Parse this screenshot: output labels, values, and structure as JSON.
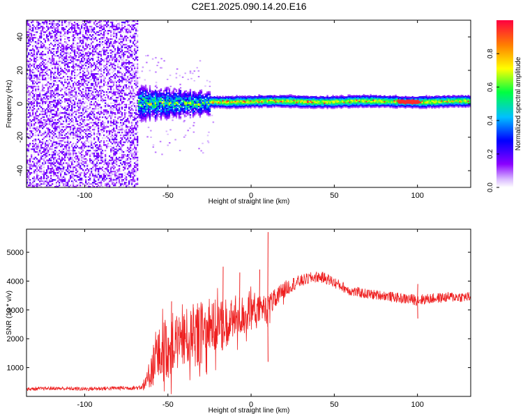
{
  "title": "C2E1.2025.090.14.20.E16",
  "chart_data": [
    {
      "type": "heatmap",
      "xlabel": "Height of straight line (km)",
      "ylabel": "Frequency (Hz)",
      "xlim": [
        -135,
        132
      ],
      "ylim": [
        -50,
        50
      ],
      "xticks": [
        -100,
        -50,
        0,
        50,
        100
      ],
      "yticks": [
        -40,
        -20,
        0,
        20,
        40
      ],
      "xtick_labels": [
        "-100",
        "-50",
        "0",
        "50",
        "100"
      ],
      "ytick_labels": [
        "-40",
        "-20",
        "0",
        "20",
        "40"
      ],
      "colorbar": {
        "label": "Normalized spectral amplitude",
        "range": [
          0,
          1
        ],
        "ticks": [
          0.0,
          0.2,
          0.4,
          0.6,
          0.8
        ],
        "tick_labels": [
          "0.0",
          "0.2",
          "0.4",
          "0.6",
          "0.8"
        ],
        "colormap": [
          "#ffffff",
          "#8a00ff",
          "#0000ff",
          "#00c0ff",
          "#00ff40",
          "#ffff00",
          "#ff8000",
          "#ff0040"
        ]
      },
      "regions": [
        {
          "x_range": [
            -135,
            -68
          ],
          "freq_range": [
            -50,
            50
          ],
          "amplitude": [
            0.0,
            0.2
          ],
          "pattern": "broadband noise"
        },
        {
          "x_range": [
            -68,
            -25
          ],
          "freq_center": 0,
          "freq_halfwidth": 6,
          "amplitude": [
            0.2,
            0.7
          ],
          "pattern": "ragged band"
        },
        {
          "x_range": [
            -25,
            132
          ],
          "freq_center": 1,
          "freq_halfwidth": 3,
          "amplitude": [
            0.5,
            1.0
          ],
          "pattern": "narrow band"
        }
      ]
    },
    {
      "type": "line",
      "xlabel": "Height of straight line (km)",
      "ylabel": "SNR (10 * v/v)",
      "xlim": [
        -135,
        132
      ],
      "ylim": [
        0,
        5800
      ],
      "xticks": [
        -100,
        -50,
        0,
        50,
        100
      ],
      "yticks": [
        1000,
        2000,
        3000,
        4000,
        5000
      ],
      "xtick_labels": [
        "-100",
        "-50",
        "0",
        "50",
        "100"
      ],
      "ytick_labels": [
        "1000",
        "2000",
        "3000",
        "4000",
        "5000"
      ],
      "series": [
        {
          "color": "#ee2020",
          "x": [
            -135,
            -120,
            -100,
            -80,
            -68,
            -63,
            -60,
            -55,
            -50,
            -45,
            -40,
            -35,
            -30,
            -25,
            -20,
            -15,
            -10,
            -5,
            0,
            5,
            10,
            15,
            20,
            25,
            30,
            35,
            40,
            45,
            50,
            55,
            60,
            70,
            80,
            90,
            100,
            110,
            120,
            132
          ],
          "y": [
            250,
            280,
            260,
            290,
            300,
            450,
            1000,
            1400,
            1700,
            1900,
            2000,
            2100,
            2200,
            2300,
            2400,
            2600,
            2700,
            2800,
            2900,
            3000,
            3100,
            3400,
            3700,
            3900,
            4000,
            4100,
            4150,
            4100,
            3950,
            3800,
            3650,
            3550,
            3500,
            3400,
            3350,
            3400,
            3450,
            3450
          ],
          "amplitude": [
            60,
            60,
            70,
            70,
            80,
            250,
            700,
            1000,
            1100,
            1100,
            1000,
            1100,
            1100,
            1000,
            1000,
            900,
            800,
            700,
            600,
            500,
            450,
            350,
            300,
            250,
            220,
            200,
            200,
            200,
            200,
            180,
            180,
            180,
            170,
            180,
            200,
            180,
            180,
            180
          ],
          "spikes": [
            {
              "x": -48,
              "y": 3300
            },
            {
              "x": -35,
              "y": 3200
            },
            {
              "x": -17,
              "y": 4500
            },
            {
              "x": -7,
              "y": 4300
            },
            {
              "x": 10,
              "y": 5700
            },
            {
              "x": 5,
              "y": 4400
            },
            {
              "x": 10,
              "y": 1200
            },
            {
              "x": 100,
              "y": 2700
            },
            {
              "x": 100,
              "y": 3900
            }
          ]
        }
      ]
    }
  ]
}
